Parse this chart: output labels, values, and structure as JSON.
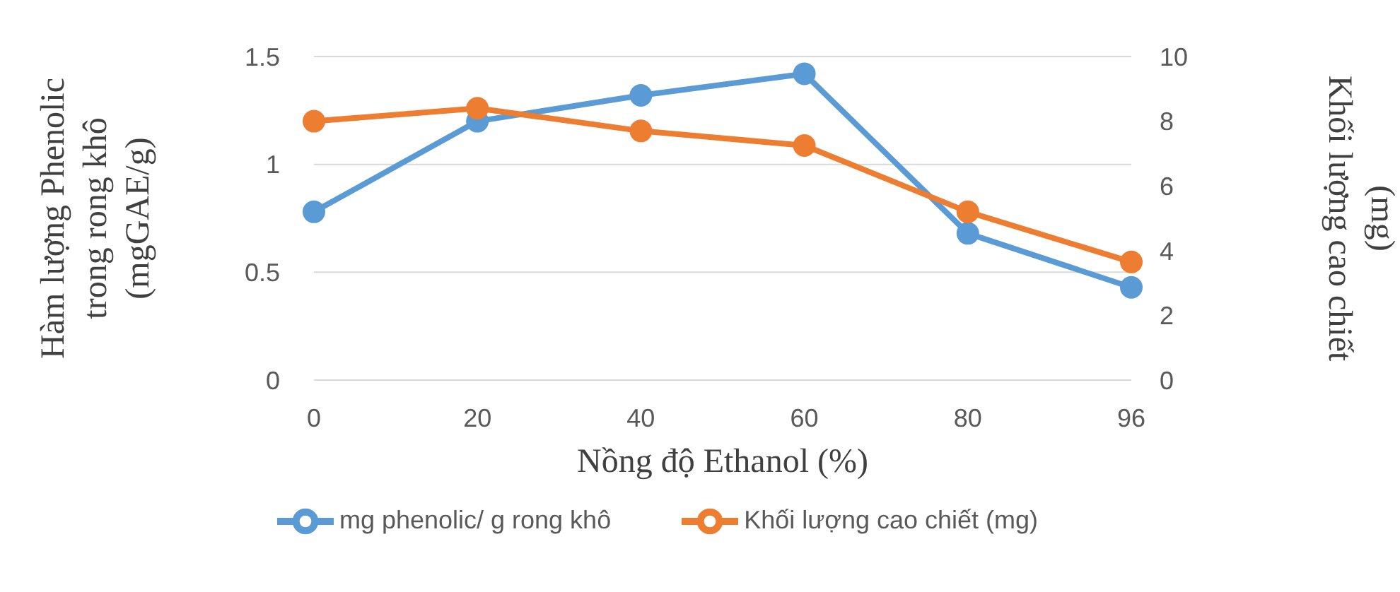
{
  "chart_data": {
    "type": "line",
    "xlabel": "Nồng độ Ethanol (%)",
    "ylabel": "Hàm lượng Phenolic trong rong khô (mgGAE/g)",
    "y2label": "Khối lượng cao chiết (mg)",
    "categories": [
      "0",
      "20",
      "40",
      "60",
      "80",
      "96"
    ],
    "series": [
      {
        "name": "mg phenolic/ g rong khô",
        "color": "#5b9bd5",
        "values": [
          0.78,
          1.2,
          1.32,
          1.42,
          0.68,
          0.43
        ]
      },
      {
        "name": "Khối lượng cao chiết (mg)",
        "color": "#ed7d31",
        "axis": "y2",
        "values": [
          8.0,
          8.4,
          7.7,
          7.25,
          5.2,
          3.65
        ]
      }
    ],
    "ylim": [
      0,
      1.5
    ],
    "yticks": [
      0,
      0.5,
      1,
      1.5
    ],
    "y2lim": [
      0,
      10
    ],
    "y2ticks": [
      0,
      2,
      4,
      6,
      8,
      10
    ],
    "grid": "y",
    "legend": "bottom",
    "marker": "circle",
    "line_style": "solid"
  }
}
